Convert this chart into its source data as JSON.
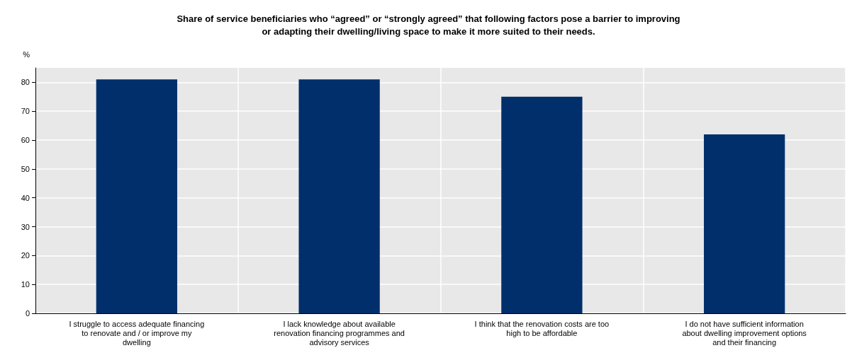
{
  "chart_data": {
    "type": "bar",
    "title": "Share of service beneficiaries who “agreed” or “strongly agreed” that following factors pose a barrier to improving\nor adapting their dwelling/living space to make it more suited to their needs.",
    "ylabel": "%",
    "categories": [
      "I struggle to access adequate financing\nto renovate and / or improve my\ndwelling",
      "I lack knowledge about available\nrenovation financing programmes and\nadvisory services",
      "I think that the renovation costs are too\nhigh to be affordable",
      "I do not have sufficient information\nabout dwelling improvement options\nand their financing"
    ],
    "values": [
      81,
      81,
      75,
      62
    ],
    "color": "#002f6c",
    "ylim": [
      0,
      85
    ],
    "yticks": [
      0,
      10,
      20,
      30,
      40,
      50,
      60,
      70,
      80
    ],
    "grid": true
  }
}
